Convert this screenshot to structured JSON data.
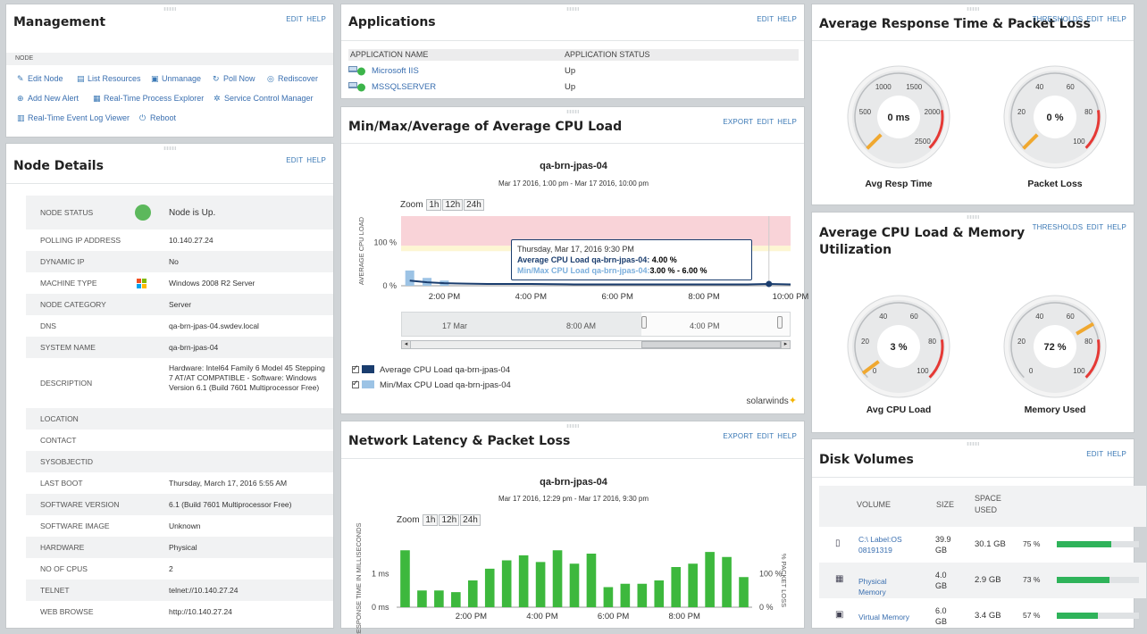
{
  "management": {
    "title": "Management",
    "actions": [
      "EDIT",
      "HELP"
    ],
    "subheader": "NODE",
    "links": [
      {
        "label": "Edit Node",
        "icon": "pencil-icon"
      },
      {
        "label": "List Resources",
        "icon": "list-icon"
      },
      {
        "label": "Unmanage",
        "icon": "unmanage-icon"
      },
      {
        "label": "Poll Now",
        "icon": "refresh-icon"
      },
      {
        "label": "Rediscover",
        "icon": "rediscover-icon"
      },
      {
        "label": "Add New Alert",
        "icon": "plus-circle-icon"
      },
      {
        "label": "Real-Time Process Explorer",
        "icon": "process-icon"
      },
      {
        "label": "Service Control Manager",
        "icon": "gear-icon"
      },
      {
        "label": "Real-Time Event Log Viewer",
        "icon": "log-icon"
      },
      {
        "label": "Reboot",
        "icon": "reboot-icon"
      }
    ]
  },
  "node_details": {
    "title": "Node Details",
    "actions": [
      "EDIT",
      "HELP"
    ],
    "rows": [
      {
        "label": "NODE STATUS",
        "value": "Node is Up.",
        "link": true,
        "icon": "status-up-icon"
      },
      {
        "label": "POLLING IP ADDRESS",
        "value": "10.140.27.24",
        "link": true
      },
      {
        "label": "DYNAMIC IP",
        "value": "No"
      },
      {
        "label": "MACHINE TYPE",
        "value": "Windows 2008 R2 Server",
        "icon": "windows-logo-icon"
      },
      {
        "label": "NODE CATEGORY",
        "value": "Server"
      },
      {
        "label": "DNS",
        "value": "qa-brn-jpas-04.swdev.local"
      },
      {
        "label": "SYSTEM NAME",
        "value": "qa-brn-jpas-04"
      },
      {
        "label": "DESCRIPTION",
        "value": "Hardware: Intel64 Family 6 Model 45 Stepping 7 AT/AT COMPATIBLE - Software: Windows Version 6.1 (Build 7601 Multiprocessor Free)"
      },
      {
        "label": "LOCATION",
        "value": ""
      },
      {
        "label": "CONTACT",
        "value": ""
      },
      {
        "label": "SYSOBJECTID",
        "value": ""
      },
      {
        "label": "LAST BOOT",
        "value": "Thursday, March 17, 2016 5:55 AM"
      },
      {
        "label": "SOFTWARE VERSION",
        "value": "6.1 (Build 7601 Multiprocessor Free)"
      },
      {
        "label": "SOFTWARE IMAGE",
        "value": "Unknown"
      },
      {
        "label": "HARDWARE",
        "value": "Physical"
      },
      {
        "label": "NO OF CPUS",
        "value": "2"
      },
      {
        "label": "TELNET",
        "value": "telnet://10.140.27.24",
        "link": true
      },
      {
        "label": "WEB BROWSE",
        "value": "http://10.140.27.24",
        "link": true
      }
    ]
  },
  "applications": {
    "title": "Applications",
    "actions": [
      "EDIT",
      "HELP"
    ],
    "col_name": "APPLICATION NAME",
    "col_status": "APPLICATION STATUS",
    "rows": [
      {
        "name": "Microsoft IIS",
        "status": "Up"
      },
      {
        "name": "MSSQLSERVER",
        "status": "Up"
      }
    ]
  },
  "cpu_panel": {
    "title": "Min/Max/Average of Average CPU Load",
    "actions": [
      "EXPORT",
      "EDIT",
      "HELP"
    ],
    "chart_title": "qa-brn-jpas-04",
    "chart_subtitle": "Mar 17 2016, 1:00 pm - Mar 17 2016, 10:00 pm",
    "zoom_label": "Zoom",
    "zoom_buttons": [
      "1h",
      "12h",
      "24h"
    ],
    "tooltip": {
      "title": "Thursday, Mar 17, 2016 9:30 PM",
      "line1_label": "Average CPU Load qa-brn-jpas-04:",
      "line1_value": "4.00 %",
      "line2_label": "Min/Max CPU Load qa-brn-jpas-04:",
      "line2_value": "3.00 % - 6.00 %"
    },
    "navigator_labels": [
      "17 Mar",
      "8:00 AM",
      "4:00 PM"
    ],
    "branding": "solarwinds",
    "colors": {
      "avg": "#1a3d6e",
      "minmax": "#9cc3e5",
      "critical": "#f9d3d8",
      "warning": "#fdf6d2"
    }
  },
  "latency_panel": {
    "title": "Network Latency & Packet Loss",
    "actions": [
      "EXPORT",
      "EDIT",
      "HELP"
    ],
    "chart_title": "qa-brn-jpas-04",
    "chart_subtitle": "Mar 17 2016, 12:29 pm - Mar 17 2016, 9:30 pm",
    "zoom_label": "Zoom",
    "zoom_buttons": [
      "1h",
      "12h",
      "24h"
    ],
    "bar_color": "#3db83d"
  },
  "resp_panel": {
    "title": "Average Response Time & Packet Loss",
    "actions": [
      "THRESHOLDS",
      "EDIT",
      "HELP"
    ],
    "gauges": [
      {
        "label": "Avg Resp Time",
        "value_text": "0 ms",
        "value": 0,
        "max": 2500,
        "ticks": [
          "500",
          "1000",
          "1500",
          "2000",
          "2500"
        ],
        "red_from": 2000
      },
      {
        "label": "Packet Loss",
        "value_text": "0 %",
        "value": 0,
        "max": 100,
        "ticks": [
          "20",
          "40",
          "60",
          "80",
          "100"
        ],
        "red_from": 80
      }
    ]
  },
  "cpumem_panel": {
    "title_line1": "Average CPU Load & Memory",
    "title_line2": "Utilization",
    "actions": [
      "THRESHOLDS",
      "EDIT",
      "HELP"
    ],
    "gauges": [
      {
        "label": "Avg CPU Load",
        "value_text": "3 %",
        "value": 3,
        "max": 100,
        "ticks": [
          "0",
          "20",
          "40",
          "60",
          "80",
          "100"
        ],
        "red_from": 80
      },
      {
        "label": "Memory Used",
        "value_text": "72 %",
        "value": 72,
        "max": 100,
        "ticks": [
          "0",
          "20",
          "40",
          "60",
          "80",
          "100"
        ],
        "red_from": 80
      }
    ]
  },
  "disk_panel": {
    "title": "Disk Volumes",
    "actions": [
      "EDIT",
      "HELP"
    ],
    "col_volume": "VOLUME",
    "col_size": "SIZE",
    "col_used": "SPACE USED",
    "rows": [
      {
        "name": "C:\\ Label:OS 08191319",
        "size": "39.9 GB",
        "used": "30.1 GB",
        "pct_text": "75 %",
        "pct": 75,
        "icon": "disk-icon"
      },
      {
        "name": "Physical Memory",
        "size": "4.0 GB",
        "used": "2.9 GB",
        "pct_text": "73 %",
        "pct": 73,
        "icon": "memory-icon"
      },
      {
        "name": "Virtual Memory",
        "size": "6.0 GB",
        "used": "3.4 GB",
        "pct_text": "57 %",
        "pct": 57,
        "icon": "virtual-memory-icon"
      }
    ]
  },
  "chart_data": [
    {
      "type": "line",
      "title": "qa-brn-jpas-04",
      "subtitle": "Mar 17 2016, 1:00 pm - Mar 17 2016, 10:00 pm",
      "ylabel": "AVERAGE CPU LOAD",
      "y_ticks": [
        "0 %",
        "100 %"
      ],
      "x_ticks": [
        "2:00 PM",
        "4:00 PM",
        "6:00 PM",
        "8:00 PM",
        "10:00 PM"
      ],
      "xlim": [
        13.0,
        22.0
      ],
      "ylim": [
        0,
        160
      ],
      "series": [
        {
          "name": "Average CPU Load qa-brn-jpas-04",
          "x": [
            13.2,
            13.6,
            14.0,
            14.5,
            15.0,
            16.0,
            17.0,
            18.0,
            19.0,
            20.0,
            21.0,
            21.5,
            22.0
          ],
          "values": [
            12,
            8,
            6,
            5,
            4,
            4,
            3,
            3,
            3,
            3,
            3,
            4,
            3
          ]
        },
        {
          "name": "Min/Max CPU Load qa-brn-jpas-04",
          "x": [
            13.2,
            13.6,
            14.0
          ],
          "values": [
            35,
            18,
            12
          ]
        }
      ],
      "legend": "bottom-left"
    },
    {
      "type": "bar",
      "title": "qa-brn-jpas-04",
      "subtitle": "Mar 17 2016, 12:29 pm - Mar 17 2016, 9:30 pm",
      "ylabel": "RESPONSE TIME IN MILLISECONDS",
      "y2label": "% PACKET LOSS",
      "y_ticks": [
        "0 ms",
        "1 ms"
      ],
      "y2_ticks": [
        "0 %",
        "100 %"
      ],
      "x_ticks": [
        "2:00 PM",
        "4:00 PM",
        "6:00 PM",
        "8:00 PM"
      ],
      "ylim": [
        0,
        2.0
      ],
      "values": [
        1.7,
        0.5,
        0.5,
        0.45,
        0.8,
        1.15,
        1.4,
        1.55,
        1.35,
        1.7,
        1.3,
        1.6,
        0.6,
        0.7,
        0.7,
        0.8,
        1.2,
        1.3,
        1.65,
        1.5,
        0.9
      ]
    }
  ]
}
